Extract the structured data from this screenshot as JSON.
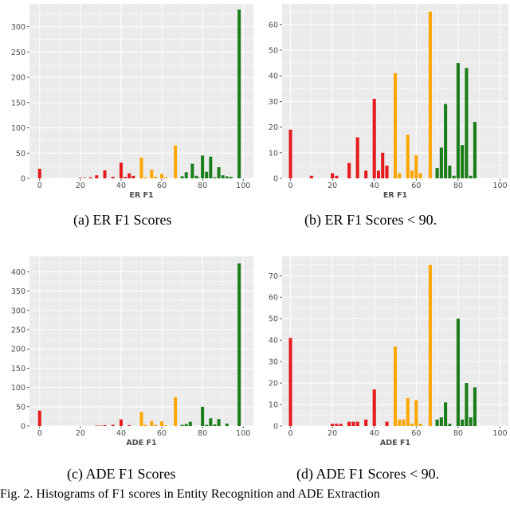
{
  "chart_data": [
    {
      "id": "a",
      "type": "bar",
      "xlabel": "ER F1",
      "xticks": [
        0,
        20,
        40,
        60,
        80,
        100
      ],
      "yticks": [
        0,
        50,
        100,
        150,
        200,
        250,
        300
      ],
      "xlim": [
        -5,
        105
      ],
      "ylim": [
        0,
        345
      ],
      "grid": true,
      "caption": "(a)  ER F1 Scores",
      "bars": [
        {
          "x": 0,
          "y": 19,
          "color": "red"
        },
        {
          "x": 20,
          "y": 1,
          "color": "red"
        },
        {
          "x": 22,
          "y": 1,
          "color": "red"
        },
        {
          "x": 25,
          "y": 2,
          "color": "red"
        },
        {
          "x": 28,
          "y": 6,
          "color": "red"
        },
        {
          "x": 32,
          "y": 16,
          "color": "red"
        },
        {
          "x": 36,
          "y": 3,
          "color": "red"
        },
        {
          "x": 40,
          "y": 31,
          "color": "red"
        },
        {
          "x": 42,
          "y": 3,
          "color": "red"
        },
        {
          "x": 44,
          "y": 10,
          "color": "red"
        },
        {
          "x": 46,
          "y": 5,
          "color": "red"
        },
        {
          "x": 50,
          "y": 41,
          "color": "orange"
        },
        {
          "x": 52,
          "y": 2,
          "color": "orange"
        },
        {
          "x": 55,
          "y": 17,
          "color": "orange"
        },
        {
          "x": 57,
          "y": 3,
          "color": "orange"
        },
        {
          "x": 60,
          "y": 9,
          "color": "orange"
        },
        {
          "x": 62,
          "y": 2,
          "color": "orange"
        },
        {
          "x": 66.7,
          "y": 65,
          "color": "orange"
        },
        {
          "x": 70,
          "y": 4,
          "color": "green"
        },
        {
          "x": 72,
          "y": 12,
          "color": "green"
        },
        {
          "x": 75,
          "y": 29,
          "color": "green"
        },
        {
          "x": 77,
          "y": 5,
          "color": "green"
        },
        {
          "x": 78,
          "y": 1,
          "color": "green"
        },
        {
          "x": 80,
          "y": 45,
          "color": "green"
        },
        {
          "x": 82,
          "y": 13,
          "color": "green"
        },
        {
          "x": 84,
          "y": 43,
          "color": "green"
        },
        {
          "x": 86,
          "y": 2,
          "color": "green"
        },
        {
          "x": 88,
          "y": 22,
          "color": "green"
        },
        {
          "x": 90,
          "y": 6,
          "color": "green"
        },
        {
          "x": 92,
          "y": 4,
          "color": "green"
        },
        {
          "x": 94,
          "y": 3,
          "color": "green"
        },
        {
          "x": 98,
          "y": 334,
          "color": "green"
        }
      ]
    },
    {
      "id": "b",
      "type": "bar",
      "xlabel": "ER F1",
      "xticks": [
        0,
        20,
        40,
        60,
        80,
        100
      ],
      "yticks": [
        0,
        10,
        20,
        30,
        40,
        50,
        60
      ],
      "xlim": [
        -4,
        104
      ],
      "ylim": [
        0,
        68
      ],
      "grid": true,
      "caption": "(b)  ER F1 Scores < 90.",
      "bars": [
        {
          "x": 0,
          "y": 19,
          "color": "red"
        },
        {
          "x": 10,
          "y": 1,
          "color": "red"
        },
        {
          "x": 20,
          "y": 2,
          "color": "red"
        },
        {
          "x": 22,
          "y": 1,
          "color": "red"
        },
        {
          "x": 28,
          "y": 6,
          "color": "red"
        },
        {
          "x": 32,
          "y": 16,
          "color": "red"
        },
        {
          "x": 36,
          "y": 3,
          "color": "red"
        },
        {
          "x": 40,
          "y": 31,
          "color": "red"
        },
        {
          "x": 42,
          "y": 3,
          "color": "red"
        },
        {
          "x": 44,
          "y": 10,
          "color": "red"
        },
        {
          "x": 46,
          "y": 5,
          "color": "red"
        },
        {
          "x": 50,
          "y": 41,
          "color": "orange"
        },
        {
          "x": 52,
          "y": 2,
          "color": "orange"
        },
        {
          "x": 56,
          "y": 17,
          "color": "orange"
        },
        {
          "x": 58,
          "y": 3,
          "color": "orange"
        },
        {
          "x": 60,
          "y": 9,
          "color": "orange"
        },
        {
          "x": 62,
          "y": 2,
          "color": "orange"
        },
        {
          "x": 66.7,
          "y": 65,
          "color": "orange"
        },
        {
          "x": 70,
          "y": 4,
          "color": "green"
        },
        {
          "x": 72,
          "y": 12,
          "color": "green"
        },
        {
          "x": 74,
          "y": 29,
          "color": "green"
        },
        {
          "x": 76,
          "y": 5,
          "color": "green"
        },
        {
          "x": 78,
          "y": 1,
          "color": "green"
        },
        {
          "x": 80,
          "y": 45,
          "color": "green"
        },
        {
          "x": 82,
          "y": 13,
          "color": "green"
        },
        {
          "x": 84,
          "y": 43,
          "color": "green"
        },
        {
          "x": 86,
          "y": 1,
          "color": "green"
        },
        {
          "x": 88,
          "y": 22,
          "color": "green"
        }
      ]
    },
    {
      "id": "c",
      "type": "bar",
      "xlabel": "ADE F1",
      "xticks": [
        0,
        20,
        40,
        60,
        80,
        100
      ],
      "yticks": [
        0,
        50,
        100,
        150,
        200,
        250,
        300,
        350,
        400
      ],
      "xlim": [
        -5,
        105
      ],
      "ylim": [
        0,
        440
      ],
      "grid": true,
      "caption": "(c)  ADE F1 Scores",
      "bars": [
        {
          "x": 0,
          "y": 40,
          "color": "red"
        },
        {
          "x": 28,
          "y": 1,
          "color": "red"
        },
        {
          "x": 30,
          "y": 1,
          "color": "red"
        },
        {
          "x": 32,
          "y": 2,
          "color": "red"
        },
        {
          "x": 36,
          "y": 3,
          "color": "red"
        },
        {
          "x": 40,
          "y": 17,
          "color": "red"
        },
        {
          "x": 44,
          "y": 2,
          "color": "red"
        },
        {
          "x": 50,
          "y": 37,
          "color": "orange"
        },
        {
          "x": 52,
          "y": 3,
          "color": "orange"
        },
        {
          "x": 55,
          "y": 13,
          "color": "orange"
        },
        {
          "x": 57,
          "y": 3,
          "color": "orange"
        },
        {
          "x": 60,
          "y": 12,
          "color": "orange"
        },
        {
          "x": 62,
          "y": 2,
          "color": "orange"
        },
        {
          "x": 66.7,
          "y": 75,
          "color": "orange"
        },
        {
          "x": 70,
          "y": 3,
          "color": "green"
        },
        {
          "x": 72,
          "y": 5,
          "color": "green"
        },
        {
          "x": 74,
          "y": 11,
          "color": "green"
        },
        {
          "x": 80,
          "y": 50,
          "color": "green"
        },
        {
          "x": 82,
          "y": 3,
          "color": "green"
        },
        {
          "x": 84,
          "y": 20,
          "color": "green"
        },
        {
          "x": 86,
          "y": 4,
          "color": "green"
        },
        {
          "x": 88,
          "y": 18,
          "color": "green"
        },
        {
          "x": 92,
          "y": 6,
          "color": "green"
        },
        {
          "x": 98,
          "y": 422,
          "color": "green"
        }
      ]
    },
    {
      "id": "d",
      "type": "bar",
      "xlabel": "ADE F1",
      "xticks": [
        0,
        20,
        40,
        60,
        80,
        100
      ],
      "yticks": [
        0,
        10,
        20,
        30,
        40,
        50,
        60,
        70
      ],
      "xlim": [
        -4,
        104
      ],
      "ylim": [
        0,
        79
      ],
      "grid": true,
      "caption": "(d)  ADE F1 Scores < 90.",
      "bars": [
        {
          "x": 0,
          "y": 41,
          "color": "red"
        },
        {
          "x": 20,
          "y": 1,
          "color": "red"
        },
        {
          "x": 22,
          "y": 1,
          "color": "red"
        },
        {
          "x": 24,
          "y": 1,
          "color": "red"
        },
        {
          "x": 28,
          "y": 2,
          "color": "red"
        },
        {
          "x": 30,
          "y": 2,
          "color": "red"
        },
        {
          "x": 32,
          "y": 2,
          "color": "red"
        },
        {
          "x": 36,
          "y": 3,
          "color": "red"
        },
        {
          "x": 40,
          "y": 17,
          "color": "red"
        },
        {
          "x": 46,
          "y": 2,
          "color": "red"
        },
        {
          "x": 50,
          "y": 37,
          "color": "orange"
        },
        {
          "x": 52,
          "y": 3,
          "color": "orange"
        },
        {
          "x": 54,
          "y": 3,
          "color": "orange"
        },
        {
          "x": 56,
          "y": 13,
          "color": "orange"
        },
        {
          "x": 58,
          "y": 1,
          "color": "orange"
        },
        {
          "x": 60,
          "y": 12,
          "color": "orange"
        },
        {
          "x": 62,
          "y": 1,
          "color": "orange"
        },
        {
          "x": 66.7,
          "y": 75,
          "color": "orange"
        },
        {
          "x": 70,
          "y": 3,
          "color": "green"
        },
        {
          "x": 72,
          "y": 4,
          "color": "green"
        },
        {
          "x": 74,
          "y": 11,
          "color": "green"
        },
        {
          "x": 76,
          "y": 1,
          "color": "green"
        },
        {
          "x": 80,
          "y": 50,
          "color": "green"
        },
        {
          "x": 82,
          "y": 3,
          "color": "green"
        },
        {
          "x": 84,
          "y": 20,
          "color": "green"
        },
        {
          "x": 86,
          "y": 4,
          "color": "green"
        },
        {
          "x": 88,
          "y": 18,
          "color": "green"
        }
      ]
    }
  ],
  "colors": {
    "red": "#e41a1c",
    "orange": "#ffa500",
    "green": "#1a7d1a",
    "panel_bg": "#ebebeb",
    "grid": "#ffffff"
  },
  "figure_caption": "Fig. 2.   Histograms of F1 scores in Entity Recognition and ADE Extraction"
}
